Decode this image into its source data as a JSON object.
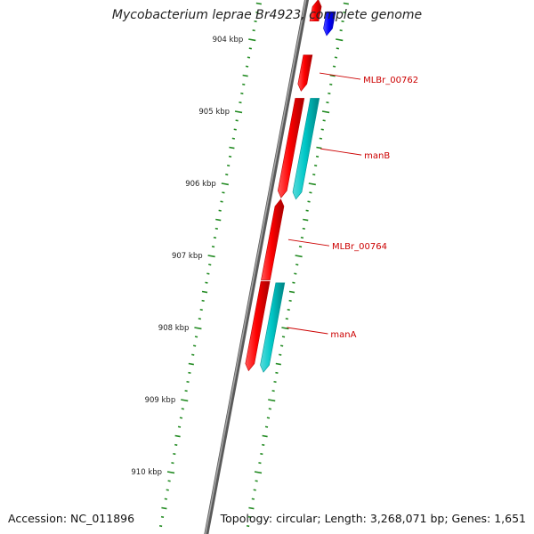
{
  "title": "Mycobacterium leprae Br4923, complete genome",
  "footer": {
    "accession": "Accession: NC_011896",
    "summary": "Topology: circular; Length: 3,268,071 bp; Genes: 1,651"
  },
  "scale": {
    "unit": "kbp",
    "ticks": [
      {
        "label": "904 kbp",
        "kbp": 904
      },
      {
        "label": "905 kbp",
        "kbp": 905
      },
      {
        "label": "906 kbp",
        "kbp": 906
      },
      {
        "label": "907 kbp",
        "kbp": 907
      },
      {
        "label": "908 kbp",
        "kbp": 908
      },
      {
        "label": "909 kbp",
        "kbp": 909
      },
      {
        "label": "910 kbp",
        "kbp": 910
      }
    ]
  },
  "features": [
    {
      "track": "forward",
      "strand": "+",
      "start_kbp": 903.45,
      "end_kbp": 903.75,
      "color": "#ff0000"
    },
    {
      "track": "reverse",
      "strand": "-",
      "start_kbp": 903.62,
      "end_kbp": 903.95,
      "color": "#0000ff"
    },
    {
      "track": "forward",
      "strand": "-",
      "start_kbp": 904.22,
      "end_kbp": 904.72,
      "color": "#ff0000",
      "label": "MLBr_00762"
    },
    {
      "track": "forward",
      "strand": "-",
      "start_kbp": 904.82,
      "end_kbp": 906.2,
      "color": "#ff0000"
    },
    {
      "track": "reverse",
      "strand": "-",
      "start_kbp": 904.82,
      "end_kbp": 906.22,
      "color": "#00c8c8",
      "label": "manB"
    },
    {
      "track": "forward",
      "strand": "+",
      "start_kbp": 906.22,
      "end_kbp": 907.34,
      "color": "#ff0000",
      "label": "MLBr_00764"
    },
    {
      "track": "forward",
      "strand": "-",
      "start_kbp": 907.36,
      "end_kbp": 908.6,
      "color": "#ff0000"
    },
    {
      "track": "reverse",
      "strand": "-",
      "start_kbp": 907.38,
      "end_kbp": 908.62,
      "color": "#00c8c8",
      "label": "manA"
    }
  ],
  "colors": {
    "backbone": "#808080",
    "ruler": "#228B22",
    "label": "#cc0000",
    "forward_gene": "#ff0000",
    "reverse_gene": "#00c8c8",
    "other_gene": "#0000ff"
  }
}
